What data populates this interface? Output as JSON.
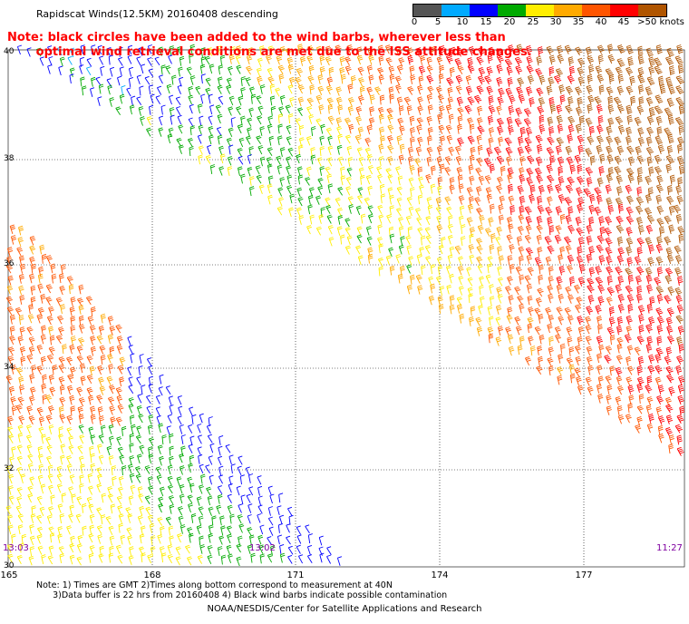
{
  "header": {
    "title": "Rapidscat Winds(12.5KM) 20160408 descending"
  },
  "note": {
    "line1": "Note: black circles have been added to the wind barbs, wherever less than",
    "line2": "       optimal wind retrieval conditions are met due to the ISS attitude changes."
  },
  "colorbar": {
    "unit_label": "knots",
    "labels": [
      "0",
      "5",
      "10",
      "15",
      "20",
      "25",
      "30",
      "35",
      "40",
      "45",
      ">50 knots"
    ],
    "colors": [
      "#555555",
      "#00aaff",
      "#0000ff",
      "#00aa00",
      "#ffee00",
      "#ffaa00",
      "#ff5500",
      "#ff0000",
      "#b05500",
      "#ff00ff",
      "#7700aa"
    ]
  },
  "axes": {
    "lat_labels": [
      "40",
      "38",
      "36",
      "34",
      "32",
      "30"
    ],
    "lon_labels": [
      "165",
      "168",
      "171",
      "174",
      "177"
    ]
  },
  "times": {
    "left": "13:03",
    "middle": "13:02",
    "right": "11:27"
  },
  "footnotes": {
    "line1": "Note: 1) Times are GMT 2)Times along bottom correspond to measurement at 40N",
    "line2": "      3)Data buffer is 22 hrs from 20160408 4) Black wind barbs indicate possible contamination"
  },
  "credit": "NOAA/NESDIS/Center for Satellite Applications and Research",
  "map_data": {
    "domain": {
      "lat": [
        30,
        40
      ],
      "lon": [
        165,
        179
      ]
    },
    "swaths": [
      {
        "name": "swath_east",
        "description": "northeast swath",
        "speed_range_knots": [
          15,
          40
        ]
      },
      {
        "name": "swath_west",
        "description": "southwest swath",
        "speed_range_knots": [
          10,
          35
        ]
      }
    ]
  }
}
